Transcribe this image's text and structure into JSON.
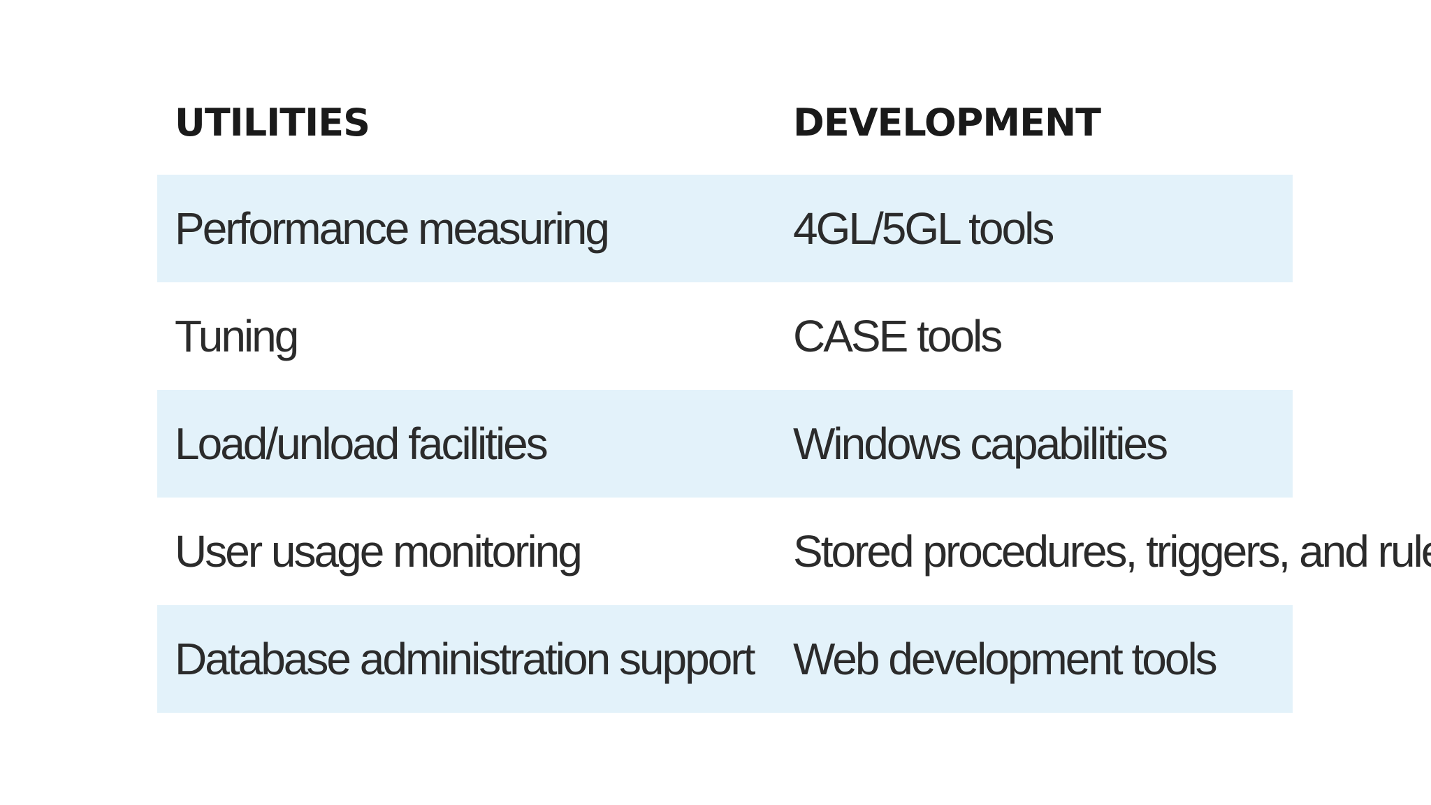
{
  "table": {
    "headers": [
      "UTILITIES",
      "DEVELOPMENT"
    ],
    "rows": [
      [
        "Performance measuring",
        "4GL/5GL tools"
      ],
      [
        "Tuning",
        "CASE tools"
      ],
      [
        "Load/unload facilities",
        "Windows capabilities"
      ],
      [
        "User usage monitoring",
        "Stored procedures, triggers, and rules"
      ],
      [
        "Database administration support",
        "Web development tools"
      ]
    ],
    "colors": {
      "shaded_row": "#e3f2fa",
      "background": "#ffffff",
      "text": "#2b2b2b"
    }
  }
}
